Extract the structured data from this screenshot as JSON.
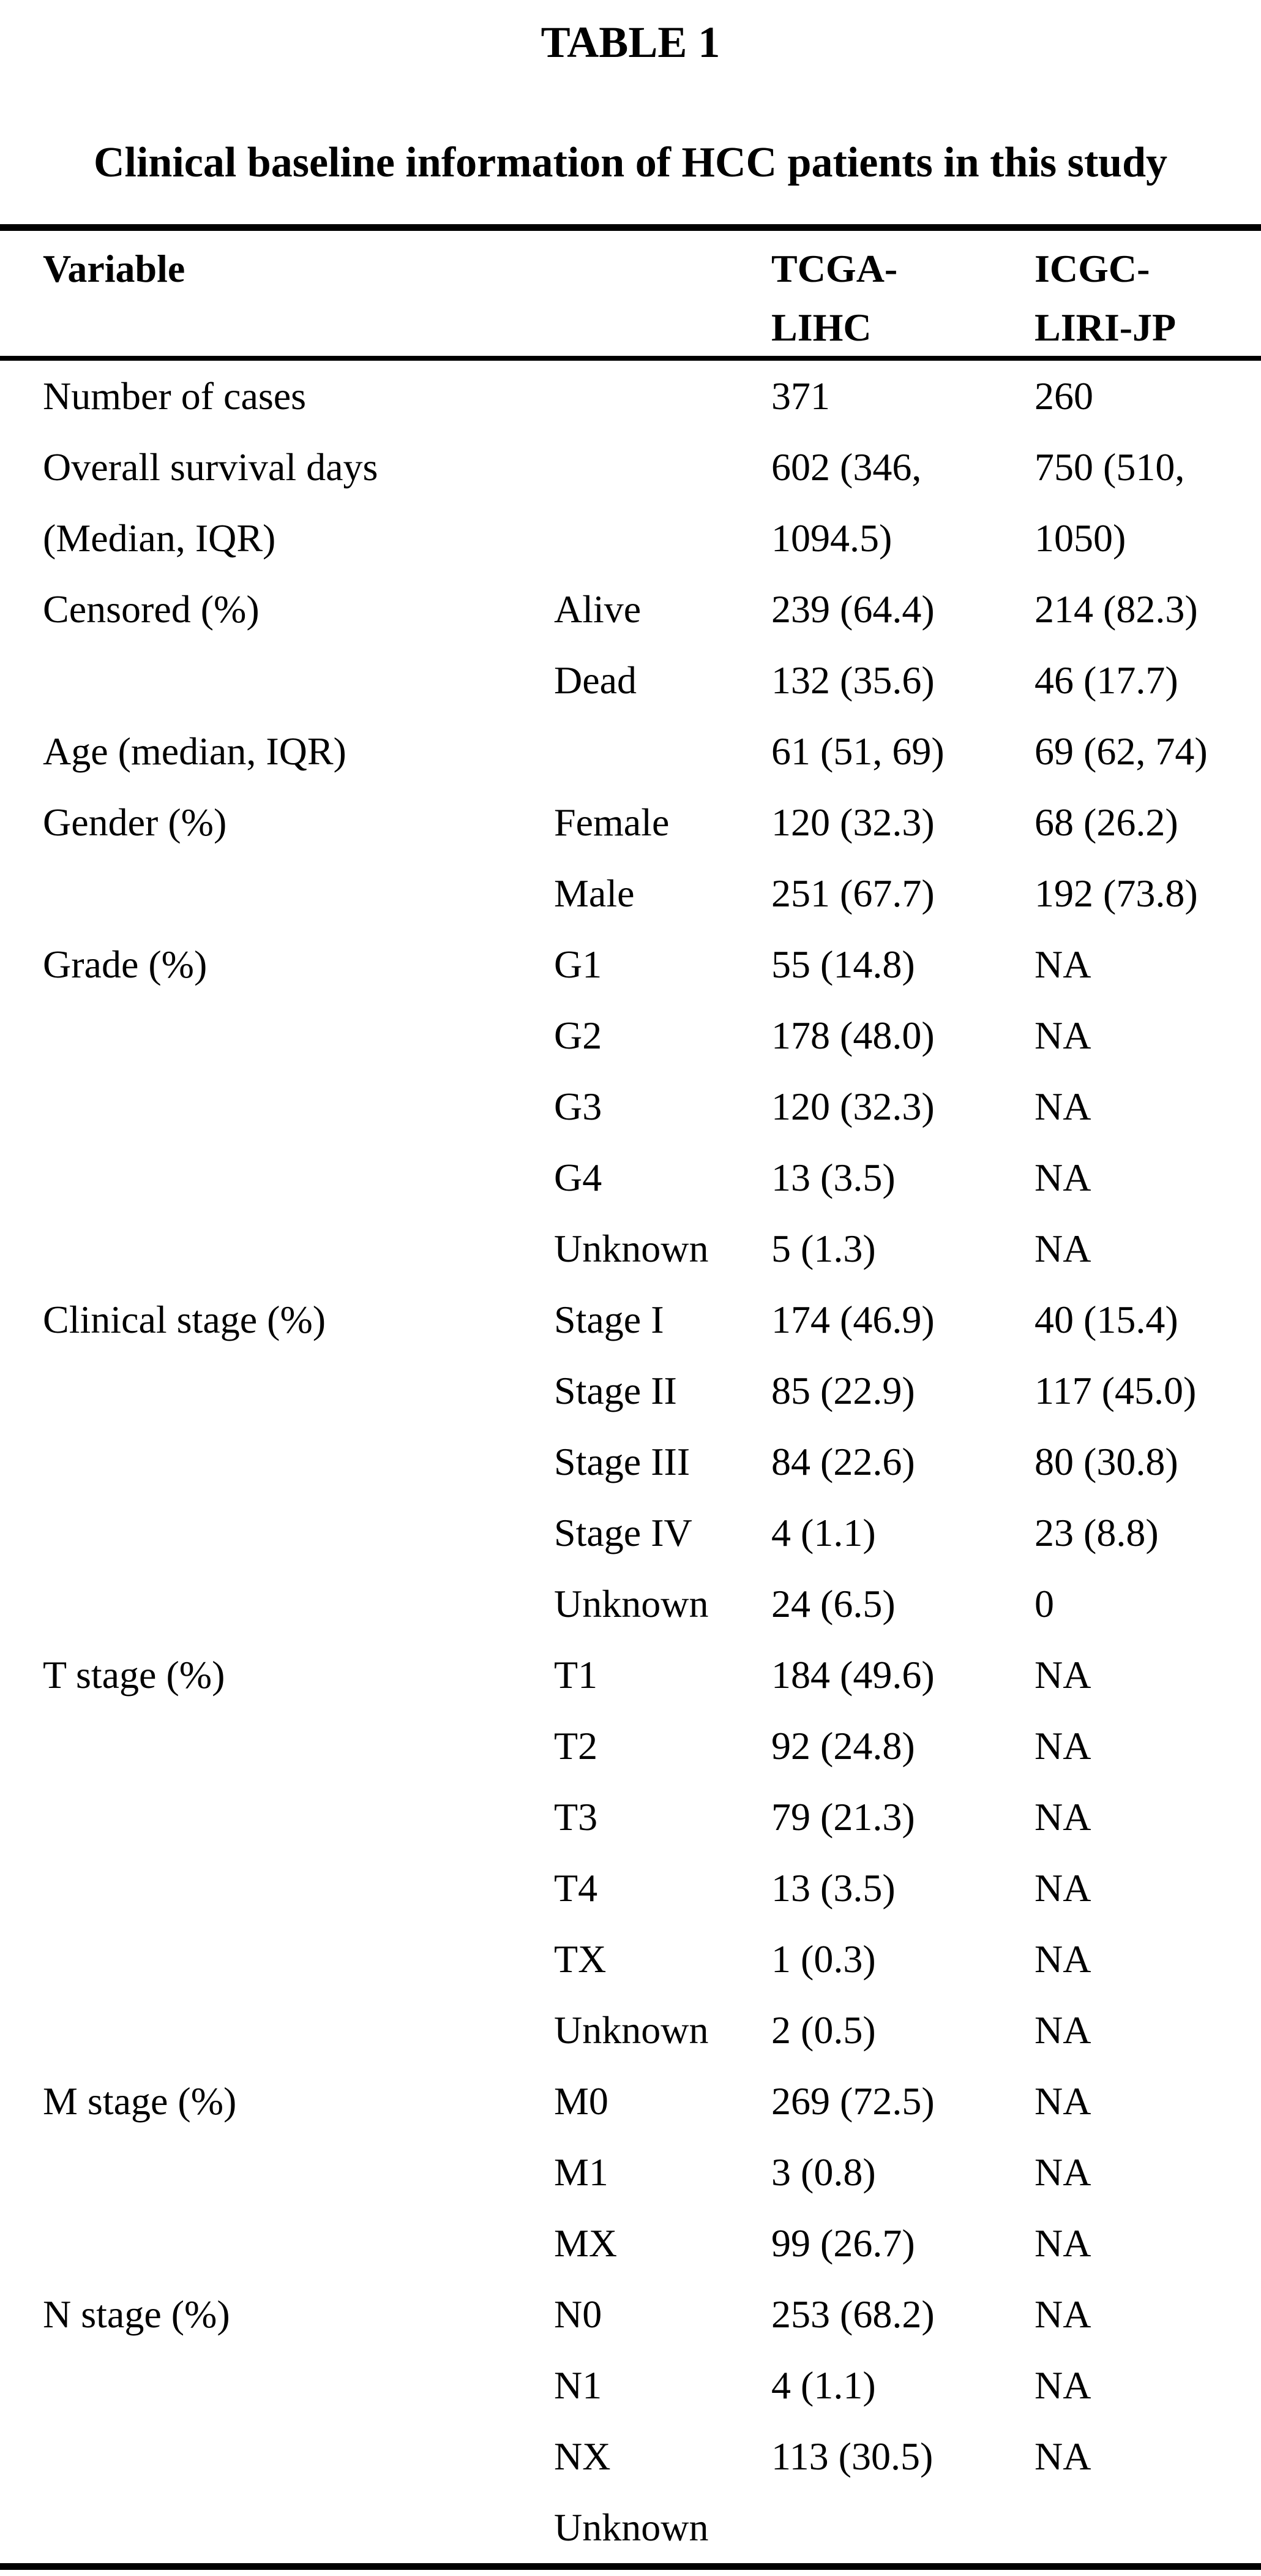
{
  "table": {
    "label": "TABLE 1",
    "caption": "Clinical baseline information of HCC patients in this study",
    "header": {
      "variable": "Variable",
      "sub": "",
      "tcga": [
        "TCGA-",
        "LIHC"
      ],
      "icgc": [
        "ICGC-",
        "LIRI-JP"
      ]
    },
    "rows": [
      {
        "variable": "Number of cases",
        "sub": "",
        "tcga": "371",
        "icgc": "260"
      },
      {
        "variable": [
          "Overall survival days",
          "(Median, IQR)"
        ],
        "sub": "",
        "tcga": [
          "602 (346,",
          "1094.5)"
        ],
        "icgc": [
          "750 (510,",
          "1050)"
        ]
      },
      {
        "variable": "Censored (%)",
        "sub": "Alive",
        "tcga": "239 (64.4)",
        "icgc": "214 (82.3)"
      },
      {
        "variable": "",
        "sub": "Dead",
        "tcga": "132 (35.6)",
        "icgc": "46 (17.7)"
      },
      {
        "variable": "Age (median, IQR)",
        "sub": "",
        "tcga": "61 (51, 69)",
        "icgc": "69 (62, 74)"
      },
      {
        "variable": "Gender (%)",
        "sub": "Female",
        "tcga": "120 (32.3)",
        "icgc": "68 (26.2)"
      },
      {
        "variable": "",
        "sub": "Male",
        "tcga": "251 (67.7)",
        "icgc": "192 (73.8)"
      },
      {
        "variable": "Grade (%)",
        "sub": "G1",
        "tcga": "55 (14.8)",
        "icgc": "NA"
      },
      {
        "variable": "",
        "sub": "G2",
        "tcga": "178 (48.0)",
        "icgc": "NA"
      },
      {
        "variable": "",
        "sub": "G3",
        "tcga": "120 (32.3)",
        "icgc": "NA"
      },
      {
        "variable": "",
        "sub": "G4",
        "tcga": "13 (3.5)",
        "icgc": "NA"
      },
      {
        "variable": "",
        "sub": "Unknown",
        "tcga": "5 (1.3)",
        "icgc": "NA"
      },
      {
        "variable": "Clinical stage (%)",
        "sub": "Stage I",
        "tcga": "174 (46.9)",
        "icgc": "40 (15.4)"
      },
      {
        "variable": "",
        "sub": "Stage II",
        "tcga": "85 (22.9)",
        "icgc": "117 (45.0)"
      },
      {
        "variable": "",
        "sub": "Stage III",
        "tcga": "84 (22.6)",
        "icgc": "80 (30.8)"
      },
      {
        "variable": "",
        "sub": "Stage IV",
        "tcga": "4 (1.1)",
        "icgc": "23 (8.8)"
      },
      {
        "variable": "",
        "sub": "Unknown",
        "tcga": "24 (6.5)",
        "icgc": "0"
      },
      {
        "variable": "T stage (%)",
        "sub": "T1",
        "tcga": "184 (49.6)",
        "icgc": "NA"
      },
      {
        "variable": "",
        "sub": "T2",
        "tcga": "92 (24.8)",
        "icgc": "NA"
      },
      {
        "variable": "",
        "sub": "T3",
        "tcga": "79 (21.3)",
        "icgc": "NA"
      },
      {
        "variable": "",
        "sub": "T4",
        "tcga": "13 (3.5)",
        "icgc": "NA"
      },
      {
        "variable": "",
        "sub": "TX",
        "tcga": "1 (0.3)",
        "icgc": "NA"
      },
      {
        "variable": "",
        "sub": "Unknown",
        "tcga": "2 (0.5)",
        "icgc": "NA"
      },
      {
        "variable": "M stage (%)",
        "sub": "M0",
        "tcga": "269 (72.5)",
        "icgc": "NA"
      },
      {
        "variable": "",
        "sub": "M1",
        "tcga": "3 (0.8)",
        "icgc": "NA"
      },
      {
        "variable": "",
        "sub": "MX",
        "tcga": "99 (26.7)",
        "icgc": "NA"
      },
      {
        "variable": "N stage (%)",
        "sub": "N0",
        "tcga": "253 (68.2)",
        "icgc": "NA"
      },
      {
        "variable": "",
        "sub": "N1",
        "tcga": "4 (1.1)",
        "icgc": "NA"
      },
      {
        "variable": "",
        "sub": "NX",
        "tcga": "113 (30.5)",
        "icgc": "NA"
      },
      {
        "variable": "",
        "sub": "Unknown",
        "tcga": "",
        "icgc": ""
      }
    ]
  }
}
